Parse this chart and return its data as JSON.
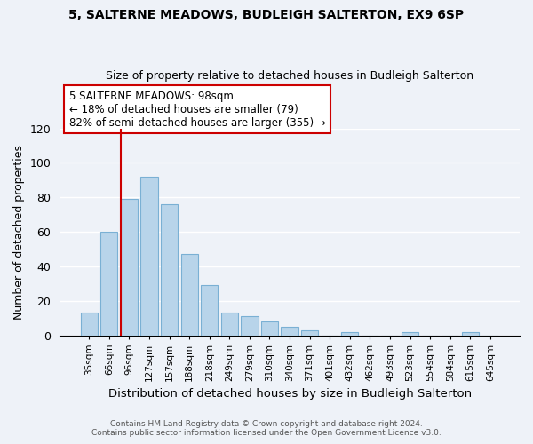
{
  "title1": "5, SALTERNE MEADOWS, BUDLEIGH SALTERTON, EX9 6SP",
  "title2": "Size of property relative to detached houses in Budleigh Salterton",
  "xlabel": "Distribution of detached houses by size in Budleigh Salterton",
  "ylabel": "Number of detached properties",
  "bar_labels": [
    "35sqm",
    "66sqm",
    "96sqm",
    "127sqm",
    "157sqm",
    "188sqm",
    "218sqm",
    "249sqm",
    "279sqm",
    "310sqm",
    "340sqm",
    "371sqm",
    "401sqm",
    "432sqm",
    "462sqm",
    "493sqm",
    "523sqm",
    "554sqm",
    "584sqm",
    "615sqm",
    "645sqm"
  ],
  "bar_values": [
    13,
    60,
    79,
    92,
    76,
    47,
    29,
    13,
    11,
    8,
    5,
    3,
    0,
    2,
    0,
    0,
    2,
    0,
    0,
    2,
    0
  ],
  "bar_color": "#b8d4ea",
  "bar_edge_color": "#7ab0d4",
  "vline_color": "#cc0000",
  "annotation_title": "5 SALTERNE MEADOWS: 98sqm",
  "annotation_line1": "← 18% of detached houses are smaller (79)",
  "annotation_line2": "82% of semi-detached houses are larger (355) →",
  "annotation_box_color": "#ffffff",
  "annotation_box_edge": "#cc0000",
  "ylim": [
    0,
    120
  ],
  "yticks": [
    0,
    20,
    40,
    60,
    80,
    100,
    120
  ],
  "footer1": "Contains HM Land Registry data © Crown copyright and database right 2024.",
  "footer2": "Contains public sector information licensed under the Open Government Licence v3.0.",
  "bg_color": "#eef2f8"
}
